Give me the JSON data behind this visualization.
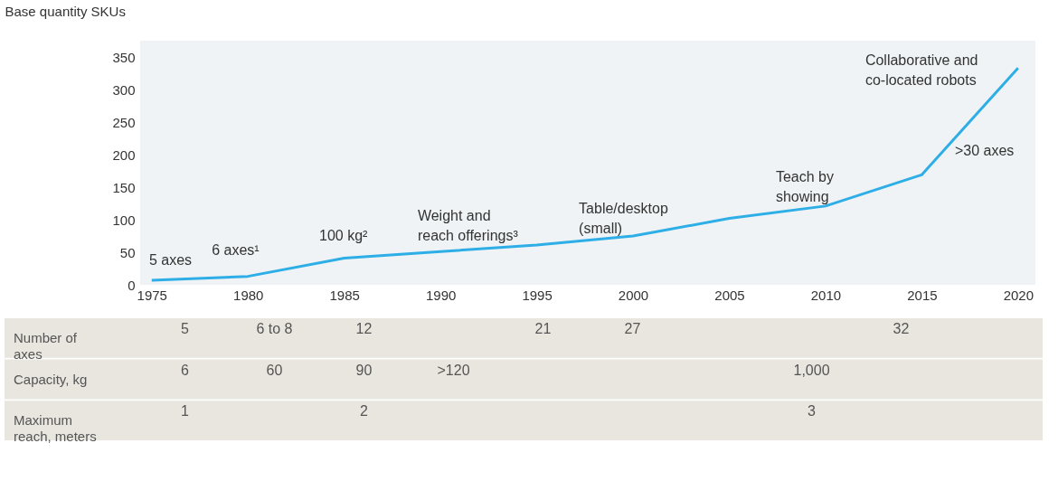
{
  "chart_data": [
    {
      "type": "line",
      "ylabel": "Base quantity SKUs",
      "x": [
        1975,
        1980,
        1985,
        1990,
        1995,
        2000,
        2005,
        2010,
        2015,
        2020
      ],
      "series": [
        {
          "color": "#2eaee6",
          "values": [
            7,
            13,
            41,
            51,
            61,
            75,
            102,
            121,
            169,
            333
          ]
        }
      ],
      "xlim": [
        1974.4,
        2020.9
      ],
      "xticks": [
        1975,
        1980,
        1985,
        1990,
        1995,
        2000,
        2005,
        2010,
        2015,
        2020
      ],
      "ylim": [
        0,
        375
      ],
      "yticks": [
        0,
        50,
        100,
        150,
        200,
        250,
        300,
        350
      ],
      "grid": false,
      "legend": false,
      "marker": "none",
      "line_style": "solid",
      "annotations": [
        "5 axes",
        "6 axes¹",
        "100 kg²",
        "Weight and\nreach offerings³",
        "Table/desktop\n(small)",
        "Teach by\nshowing",
        "Collaborative and\nco-located robots",
        ">30 axes"
      ]
    },
    {
      "type": "other",
      "categories": [
        null,
        null,
        null,
        null,
        null,
        null,
        null,
        null,
        null,
        null
      ],
      "y_categories": [
        "Number of\naxes",
        "Capacity, kg",
        "Maximum\nreach, meters"
      ],
      "cell_labels": [
        [
          "5",
          "6 to 8",
          "12",
          null,
          "21",
          "27",
          null,
          null,
          "32",
          null
        ],
        [
          "6",
          "60",
          "90",
          ">120",
          null,
          null,
          null,
          "1,000",
          null,
          null
        ],
        [
          "1",
          null,
          "2",
          null,
          null,
          null,
          null,
          "3",
          null,
          null
        ]
      ]
    }
  ]
}
